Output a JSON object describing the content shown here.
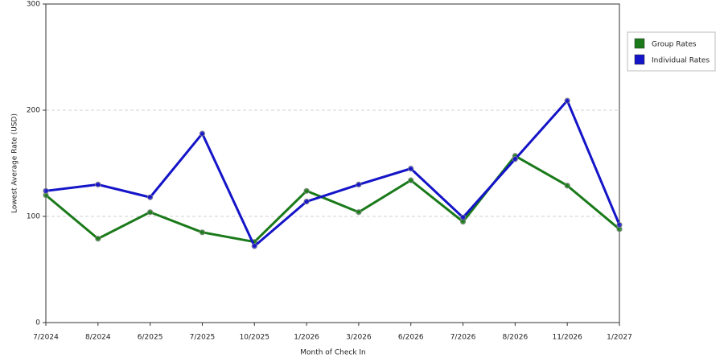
{
  "chart_data": {
    "type": "line",
    "x_label": "Month of Check In",
    "y_label": "Lowest Average Rate (USD)",
    "categories": [
      "7/2024",
      "8/2024",
      "6/2025",
      "7/2025",
      "10/2025",
      "1/2026",
      "3/2026",
      "6/2026",
      "7/2026",
      "8/2026",
      "11/2026",
      "1/2027"
    ],
    "series": [
      {
        "name": "Group Rates",
        "color": "#1a7a1a",
        "values": [
          120,
          79,
          104,
          85,
          76,
          124,
          104,
          134,
          95,
          157,
          129,
          88
        ]
      },
      {
        "name": "Individual Rates",
        "color": "#1414c8",
        "values": [
          124,
          130,
          118,
          178,
          72,
          114,
          130,
          145,
          99,
          154,
          209,
          92
        ]
      }
    ],
    "ylim": [
      0,
      300
    ],
    "yticks": [
      0,
      100,
      200,
      300
    ],
    "grid": true,
    "legend": "right"
  }
}
